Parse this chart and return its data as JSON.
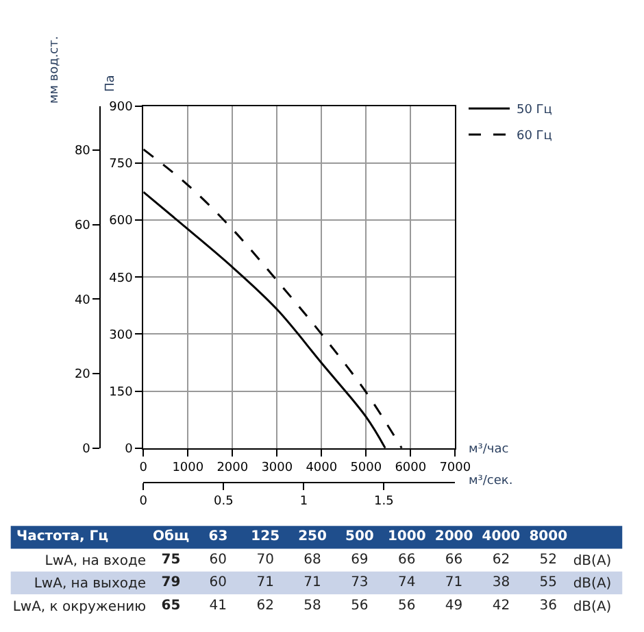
{
  "chart_data": [
    {
      "type": "line",
      "xlabel": "м³/час",
      "x2label": "м³/сек.",
      "ylabel": "Па",
      "y2label": "мм вод.ст.",
      "xlim": [
        0,
        7000
      ],
      "xticks": [
        0,
        1000,
        2000,
        3000,
        4000,
        5000,
        6000,
        7000
      ],
      "x2lim": [
        0,
        1.944
      ],
      "x2ticks": [
        0,
        0.5,
        1,
        1.5
      ],
      "ylim": [
        0,
        900
      ],
      "yticks": [
        0,
        150,
        300,
        450,
        600,
        750,
        900
      ],
      "y2lim": [
        0,
        91.8
      ],
      "y2ticks": [
        0,
        20,
        40,
        60,
        80
      ],
      "grid": true,
      "legend": "top right",
      "marker": "none",
      "series": [
        {
          "name": "50 Гц",
          "color": "#000000",
          "line_style": "solid",
          "x": [
            0,
            1000,
            2000,
            3000,
            4000,
            5000,
            5430
          ],
          "values": [
            674,
            576,
            476,
            365,
            224,
            82,
            0
          ]
        },
        {
          "name": "60 Гц",
          "color": "#000000",
          "line_style": "dashed",
          "x": [
            0,
            1000,
            2000,
            3000,
            4000,
            5000,
            5800
          ],
          "values": [
            786,
            692,
            576,
            441,
            300,
            147,
            0
          ]
        }
      ]
    },
    {
      "type": "heatmap",
      "ylabel": "Частота, Гц",
      "data_labels": true,
      "categories": [
        "Общ",
        "63",
        "125",
        "250",
        "500",
        "1000",
        "2000",
        "4000",
        "8000"
      ],
      "y_categories": [
        "LwA, на входе",
        "LwA, на выходе",
        "LwA, к окружению"
      ],
      "y2_categories": [
        "dB(A)",
        "dB(A)",
        "dB(A)"
      ],
      "cells": [
        [
          75,
          60,
          70,
          68,
          69,
          66,
          66,
          62,
          52
        ],
        [
          79,
          60,
          71,
          71,
          73,
          74,
          71,
          38,
          55
        ],
        [
          65,
          41,
          62,
          58,
          56,
          56,
          49,
          42,
          36
        ]
      ]
    }
  ]
}
